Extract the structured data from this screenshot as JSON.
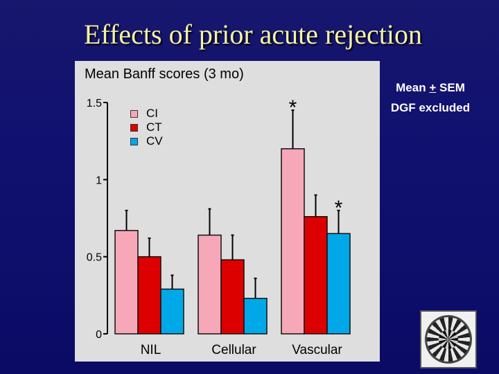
{
  "slide": {
    "title": "Effects of prior acute rejection",
    "note_line1_mean": "Mean",
    "note_line1_pm": "+",
    "note_line1_sem": "SEM",
    "note_line2": "DGF excluded"
  },
  "chart_data": {
    "type": "bar",
    "title": "Mean Banff scores (3 mo)",
    "categories": [
      "NIL",
      "Cellular",
      "Vascular"
    ],
    "series": [
      {
        "name": "CI",
        "color": "#f7a8b8",
        "values": [
          0.67,
          0.64,
          1.2
        ],
        "errors": [
          0.13,
          0.17,
          0.25
        ]
      },
      {
        "name": "CT",
        "color": "#dd0000",
        "values": [
          0.5,
          0.48,
          0.76
        ],
        "errors": [
          0.12,
          0.16,
          0.14
        ]
      },
      {
        "name": "CV",
        "color": "#00a8e8",
        "values": [
          0.29,
          0.23,
          0.65
        ],
        "errors": [
          0.09,
          0.13,
          0.15
        ]
      }
    ],
    "y_ticks": [
      {
        "value": 0,
        "label": "0"
      },
      {
        "value": 0.5,
        "label": "0.5"
      },
      {
        "value": 1,
        "label": "1"
      },
      {
        "value": 1.5,
        "label": "1.5"
      }
    ],
    "ylim": [
      0,
      1.5
    ],
    "annotations": [
      {
        "text": "*",
        "category": "Vascular",
        "series": "CI"
      },
      {
        "text": "*",
        "category": "Vascular",
        "series": "CV"
      }
    ],
    "legend_position": "top-left",
    "grid": false
  },
  "decor": {
    "emblem_icon": "circle-limit-woodcut-icon"
  }
}
